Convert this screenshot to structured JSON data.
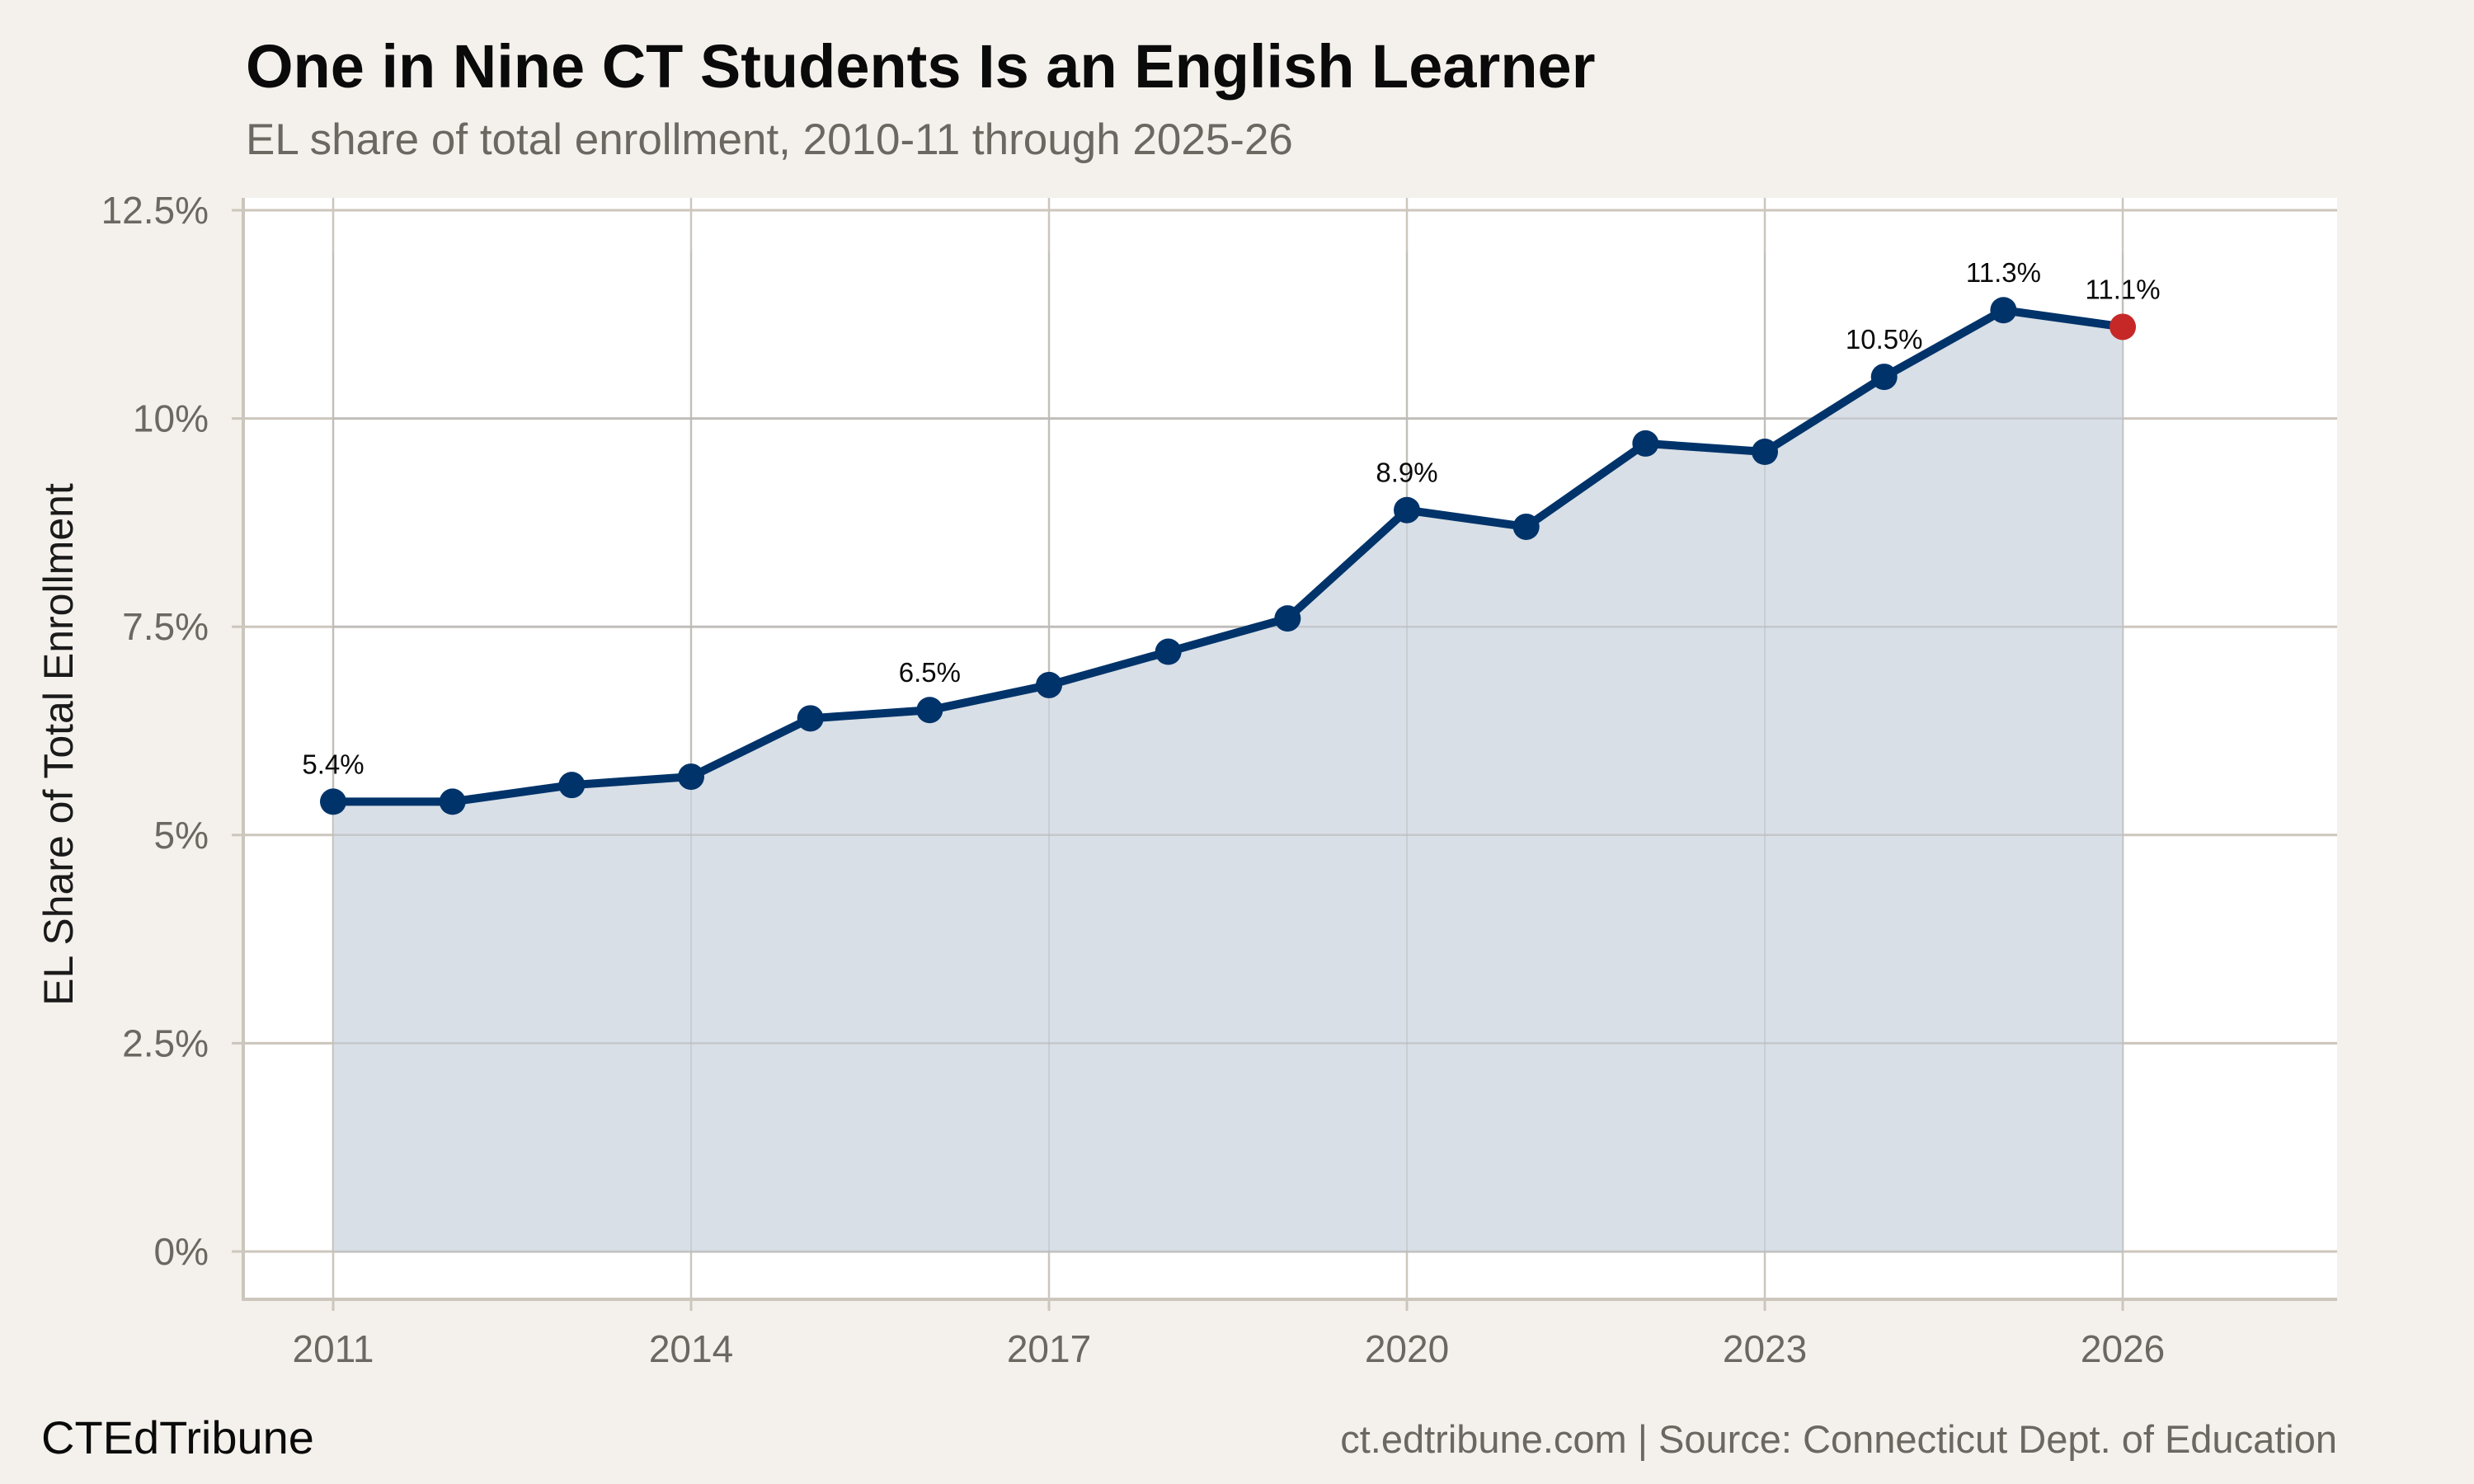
{
  "header": {
    "title": "One in Nine CT Students Is an English Learner",
    "subtitle": "EL share of total enrollment, 2010-11 through 2025-26"
  },
  "footer": {
    "brand": "CTEdTribune",
    "source": "ct.edtribune.com | Source: Connecticut Dept. of Education"
  },
  "colors": {
    "background": "#f4f1ec",
    "panel": "#ffffff",
    "grid": "#ccc6bd",
    "line": "#00336a",
    "area_fill": "#d8dfe6",
    "highlight_point": "#c62828",
    "tick_text": "#6b6761"
  },
  "chart_data": {
    "type": "area",
    "title": "One in Nine CT Students Is an English Learner",
    "subtitle": "EL share of total enrollment, 2010-11 through 2025-26",
    "xlabel": "",
    "ylabel": "EL Share of Total Enrollment",
    "x": [
      2011,
      2012,
      2013,
      2014,
      2015,
      2016,
      2017,
      2018,
      2019,
      2020,
      2021,
      2022,
      2023,
      2024,
      2025,
      2026
    ],
    "series": [
      {
        "name": "EL share of total enrollment (%)",
        "values": [
          5.4,
          5.4,
          5.6,
          5.7,
          6.4,
          6.5,
          6.8,
          7.2,
          7.6,
          8.9,
          8.7,
          9.7,
          9.6,
          10.5,
          11.3,
          11.1
        ]
      }
    ],
    "annotations": [
      {
        "x": 2011,
        "label": "5.4%"
      },
      {
        "x": 2016,
        "label": "6.5%"
      },
      {
        "x": 2020,
        "label": "8.9%"
      },
      {
        "x": 2024,
        "label": "10.5%"
      },
      {
        "x": 2025,
        "label": "11.3%"
      },
      {
        "x": 2026,
        "label": "11.1%",
        "highlight": true
      }
    ],
    "xticks": [
      2011,
      2014,
      2017,
      2020,
      2023,
      2026
    ],
    "yticks": [
      0,
      2.5,
      5,
      7.5,
      10,
      12.5
    ],
    "ytick_labels": [
      "0%",
      "2.5%",
      "5%",
      "7.5%",
      "10%",
      "12.5%"
    ],
    "xlim": [
      2010.25,
      2027.8
    ],
    "ylim": [
      -0.58,
      12.7
    ],
    "grid": true,
    "legend": "none"
  }
}
